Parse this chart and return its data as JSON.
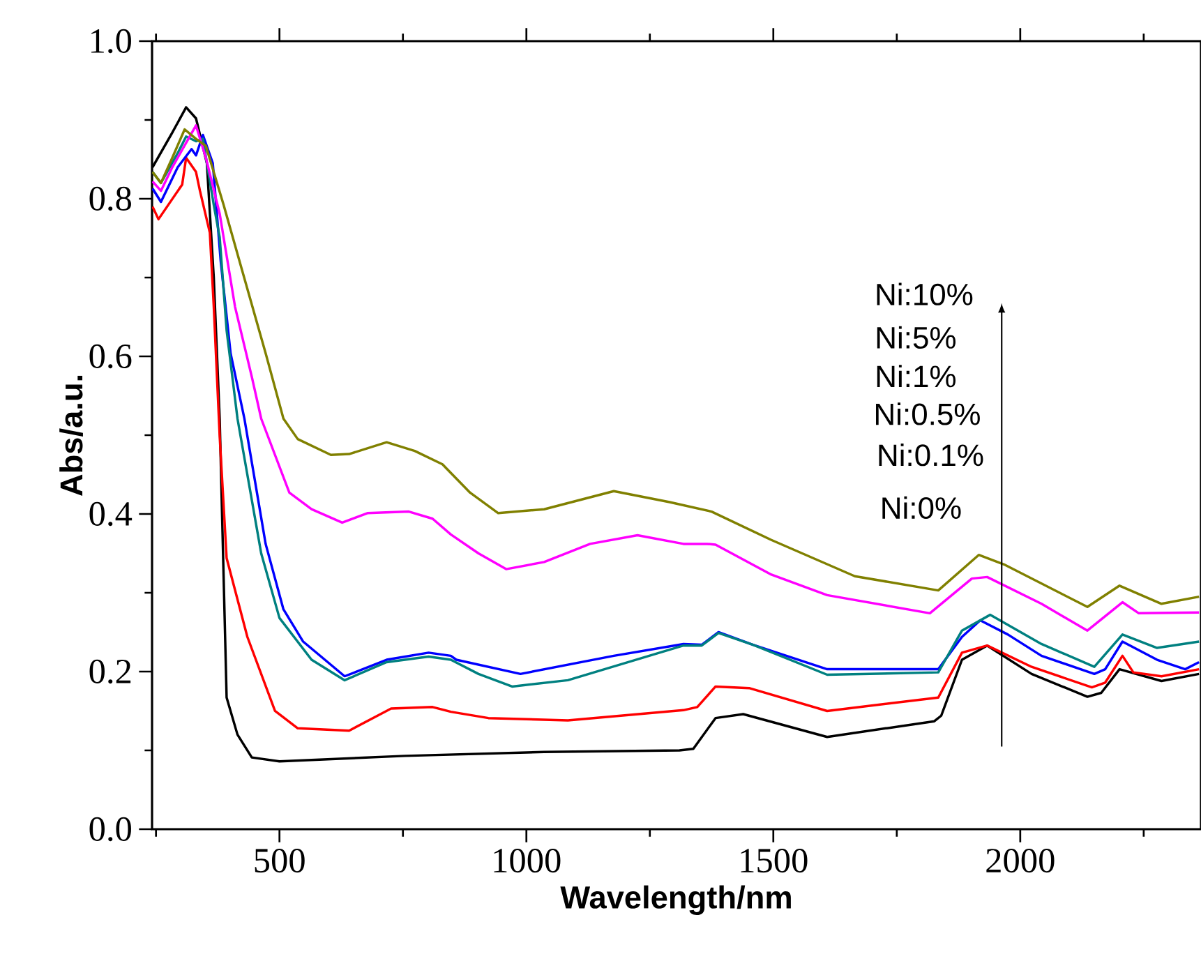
{
  "chart_data": {
    "type": "line",
    "xlabel": "Wavelength/nm",
    "ylabel": "Abs/a.u.",
    "xlim": [
      242,
      2366
    ],
    "ylim": [
      0,
      1
    ],
    "xticks": [
      {
        "value": 250,
        "label": null
      },
      500,
      {
        "value": 750,
        "label": null
      },
      1000,
      {
        "value": 1250,
        "label": null
      },
      1500,
      {
        "value": 1750,
        "label": null
      },
      2000,
      {
        "value": 2250,
        "label": null
      }
    ],
    "yticks": [
      {
        "value": 0,
        "label": "0.0"
      },
      {
        "value": 0.1,
        "label": null
      },
      0.2,
      {
        "value": 0.3,
        "label": null
      },
      0.4,
      {
        "value": 0.5,
        "label": null
      },
      0.6,
      {
        "value": 0.7,
        "label": null
      },
      0.8,
      {
        "value": 0.9,
        "label": null
      },
      {
        "value": 1,
        "label": "1.0"
      }
    ],
    "annotations": [
      "Ni:10%",
      "Ni:5%",
      "Ni:1%",
      "Ni:0.5%",
      "Ni:0.1%",
      "Ni:0%"
    ],
    "series": [
      {
        "color": "#000000",
        "x": [
          243,
          283,
          311,
          331,
          353,
          367,
          379,
          393,
          415,
          444,
          500,
          754,
          1036,
          1310,
          1338,
          1383,
          1439,
          1609,
          1826,
          1840,
          1882,
          1933,
          2023,
          2136,
          2164,
          2201,
          2286,
          2362
        ],
        "values": [
          0.84,
          0.884,
          0.916,
          0.902,
          0.845,
          0.7,
          0.52,
          0.167,
          0.12,
          0.091,
          0.086,
          0.093,
          0.098,
          0.1,
          0.102,
          0.141,
          0.146,
          0.117,
          0.137,
          0.144,
          0.215,
          0.233,
          0.197,
          0.168,
          0.173,
          0.203,
          0.188,
          0.197
        ]
      },
      {
        "color": "#ff0000",
        "x": [
          243,
          255,
          303,
          311,
          331,
          339,
          359,
          367,
          379,
          393,
          435,
          491,
          537,
          641,
          726,
          810,
          847,
          923,
          1084,
          1318,
          1346,
          1383,
          1451,
          1609,
          1834,
          1882,
          1933,
          2023,
          2145,
          2172,
          2207,
          2229,
          2286,
          2362
        ],
        "values": [
          0.79,
          0.774,
          0.818,
          0.852,
          0.834,
          0.81,
          0.757,
          0.663,
          0.498,
          0.344,
          0.244,
          0.15,
          0.128,
          0.125,
          0.153,
          0.155,
          0.149,
          0.141,
          0.138,
          0.151,
          0.155,
          0.181,
          0.179,
          0.15,
          0.167,
          0.224,
          0.233,
          0.206,
          0.18,
          0.186,
          0.22,
          0.199,
          0.194,
          0.203
        ]
      },
      {
        "color": "#0000ff",
        "x": [
          243,
          260,
          294,
          322,
          331,
          345,
          365,
          381,
          401,
          429,
          472,
          508,
          548,
          632,
          717,
          802,
          847,
          858,
          988,
          1177,
          1318,
          1355,
          1389,
          1459,
          1609,
          1834,
          1882,
          1919,
          1975,
          2043,
          2150,
          2172,
          2207,
          2277,
          2334,
          2362
        ],
        "values": [
          0.813,
          0.796,
          0.84,
          0.863,
          0.855,
          0.881,
          0.845,
          0.721,
          0.604,
          0.521,
          0.362,
          0.279,
          0.238,
          0.194,
          0.215,
          0.224,
          0.22,
          0.215,
          0.197,
          0.22,
          0.235,
          0.234,
          0.25,
          0.234,
          0.203,
          0.203,
          0.244,
          0.265,
          0.247,
          0.22,
          0.197,
          0.203,
          0.238,
          0.215,
          0.203,
          0.212
        ]
      },
      {
        "color": "#008080",
        "x": [
          243,
          260,
          294,
          311,
          331,
          345,
          367,
          379,
          393,
          415,
          463,
          500,
          565,
          632,
          717,
          802,
          847,
          903,
          971,
          1084,
          1318,
          1355,
          1389,
          1459,
          1609,
          1834,
          1882,
          1939,
          2043,
          2150,
          2207,
          2277,
          2362
        ],
        "values": [
          0.834,
          0.82,
          0.858,
          0.879,
          0.873,
          0.876,
          0.792,
          0.751,
          0.633,
          0.521,
          0.35,
          0.268,
          0.215,
          0.189,
          0.212,
          0.219,
          0.215,
          0.197,
          0.181,
          0.189,
          0.233,
          0.233,
          0.249,
          0.234,
          0.196,
          0.199,
          0.252,
          0.272,
          0.235,
          0.206,
          0.247,
          0.23,
          0.238
        ]
      },
      {
        "color": "#ff00ff",
        "x": [
          243,
          260,
          283,
          331,
          351,
          379,
          410,
          444,
          463,
          520,
          565,
          627,
          678,
          762,
          810,
          847,
          903,
          959,
          1036,
          1129,
          1225,
          1318,
          1366,
          1383,
          1496,
          1609,
          1817,
          1902,
          1933,
          2043,
          2136,
          2207,
          2240,
          2362
        ],
        "values": [
          0.822,
          0.81,
          0.84,
          0.893,
          0.852,
          0.781,
          0.663,
          0.574,
          0.521,
          0.427,
          0.406,
          0.389,
          0.401,
          0.403,
          0.394,
          0.374,
          0.35,
          0.33,
          0.339,
          0.362,
          0.373,
          0.362,
          0.362,
          0.361,
          0.323,
          0.297,
          0.274,
          0.318,
          0.32,
          0.286,
          0.252,
          0.288,
          0.274,
          0.275
        ]
      },
      {
        "color": "#808000",
        "x": [
          243,
          260,
          283,
          308,
          331,
          351,
          387,
          424,
          472,
          508,
          537,
          604,
          641,
          717,
          774,
          830,
          886,
          943,
          1036,
          1177,
          1290,
          1375,
          1496,
          1665,
          1834,
          1916,
          1967,
          2136,
          2201,
          2286,
          2362
        ],
        "values": [
          0.834,
          0.82,
          0.852,
          0.888,
          0.876,
          0.867,
          0.792,
          0.71,
          0.604,
          0.521,
          0.495,
          0.475,
          0.476,
          0.491,
          0.48,
          0.463,
          0.427,
          0.401,
          0.406,
          0.429,
          0.415,
          0.403,
          0.367,
          0.321,
          0.303,
          0.348,
          0.336,
          0.282,
          0.309,
          0.286,
          0.295
        ]
      }
    ]
  }
}
